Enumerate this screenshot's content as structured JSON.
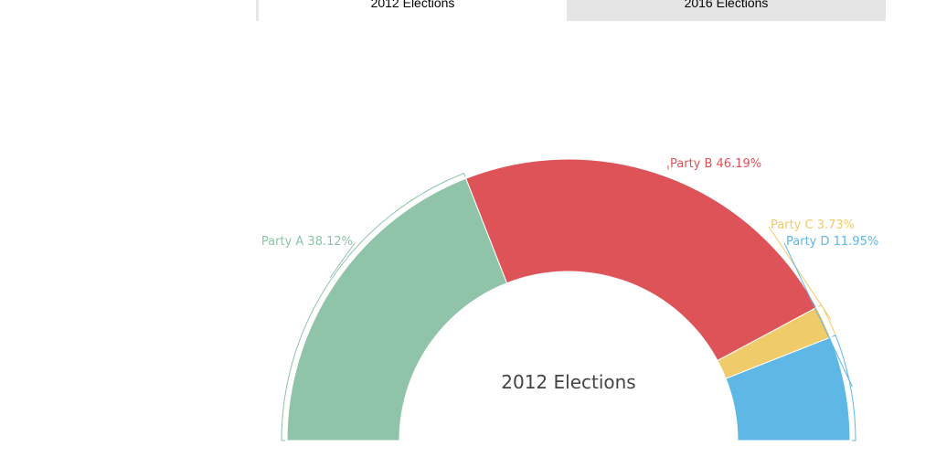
{
  "tabs": [
    {
      "label": "2012 Elections",
      "active": true
    },
    {
      "label": "2016 Elections",
      "active": false
    }
  ],
  "chart_data": {
    "type": "pie",
    "subtype": "semi-donut",
    "title": "2012 Elections",
    "categories": [
      "Party A",
      "Party B",
      "Party C",
      "Party D"
    ],
    "values": [
      38.12,
      46.19,
      3.73,
      11.95
    ],
    "colors": [
      "#8fc4a9",
      "#dd5357",
      "#f0cb69",
      "#5fb7e5"
    ],
    "labels": [
      "Party A 38.12%",
      "Party B 46.19%",
      "Party C 3.73%",
      "Party D 11.95%"
    ],
    "unit": "%"
  },
  "center_label": "2012 Elections"
}
